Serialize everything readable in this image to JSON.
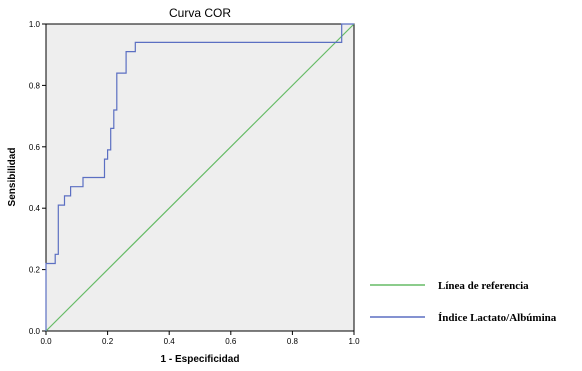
{
  "chart_data": {
    "type": "line",
    "title": "Curva COR",
    "xlabel": "1 - Especificidad",
    "ylabel": "Sensibilidad",
    "xlim": [
      0,
      1
    ],
    "ylim": [
      0,
      1
    ],
    "x_ticks": [
      "0.0",
      "0.2",
      "0.4",
      "0.6",
      "0.8",
      "1.0"
    ],
    "y_ticks": [
      "0.0",
      "0.2",
      "0.4",
      "0.6",
      "0.8",
      "1.0"
    ],
    "grid": false,
    "legend_position": "right",
    "series": [
      {
        "name": "Línea de referencia",
        "color": "#66bb66",
        "points": [
          [
            0,
            0
          ],
          [
            1,
            1
          ]
        ]
      },
      {
        "name": "Índice Lactato/Albúmina",
        "color": "#5b6fc2",
        "points": [
          [
            0.0,
            0.0
          ],
          [
            0.0,
            0.22
          ],
          [
            0.03,
            0.22
          ],
          [
            0.03,
            0.25
          ],
          [
            0.04,
            0.25
          ],
          [
            0.04,
            0.41
          ],
          [
            0.06,
            0.41
          ],
          [
            0.06,
            0.44
          ],
          [
            0.08,
            0.44
          ],
          [
            0.08,
            0.47
          ],
          [
            0.12,
            0.47
          ],
          [
            0.12,
            0.5
          ],
          [
            0.19,
            0.5
          ],
          [
            0.19,
            0.56
          ],
          [
            0.2,
            0.56
          ],
          [
            0.2,
            0.59
          ],
          [
            0.21,
            0.59
          ],
          [
            0.21,
            0.66
          ],
          [
            0.22,
            0.66
          ],
          [
            0.22,
            0.72
          ],
          [
            0.23,
            0.72
          ],
          [
            0.23,
            0.84
          ],
          [
            0.26,
            0.84
          ],
          [
            0.26,
            0.91
          ],
          [
            0.29,
            0.91
          ],
          [
            0.29,
            0.94
          ],
          [
            0.96,
            0.94
          ],
          [
            0.96,
            1.0
          ],
          [
            1.0,
            1.0
          ]
        ]
      }
    ]
  },
  "colors": {
    "plot_background": "#eeeeee",
    "frame": "#000000"
  }
}
